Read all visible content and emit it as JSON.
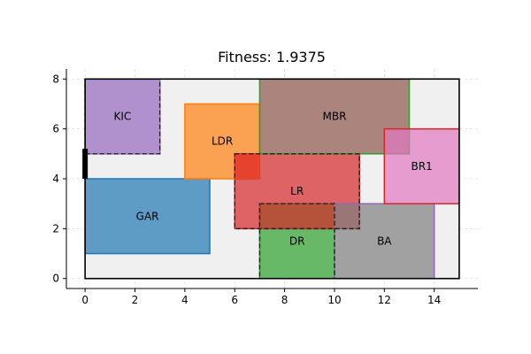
{
  "chart_data": {
    "type": "floorplan",
    "title": "Fitness: 1.9375",
    "xlim": [
      -0.75,
      15.75
    ],
    "ylim": [
      -0.4,
      8.4
    ],
    "xticks": [
      0,
      2,
      4,
      6,
      8,
      10,
      12,
      14
    ],
    "yticks": [
      0,
      2,
      4,
      6,
      8
    ],
    "grid": true,
    "boundary": {
      "x0": 0,
      "y0": 0,
      "x1": 15,
      "y1": 8
    },
    "entrance": {
      "x": 0,
      "y0": 4.0,
      "y1": 5.2
    },
    "rooms": [
      {
        "name": "KIC",
        "x0": 0,
        "y0": 5,
        "x1": 3,
        "y1": 8,
        "fill": "#9467bd",
        "edge": "#9467bd",
        "dashed": false
      },
      {
        "name": "GAR",
        "x0": 0,
        "y0": 1,
        "x1": 5,
        "y1": 4,
        "fill": "#1f77b4",
        "edge": "#1f77b4",
        "dashed": false
      },
      {
        "name": "LDR",
        "x0": 4,
        "y0": 4,
        "x1": 7,
        "y1": 7,
        "fill": "#ff7f0e",
        "edge": "#ff7f0e",
        "dashed": false
      },
      {
        "name": "DR",
        "x0": 7,
        "y0": 0,
        "x1": 10,
        "y1": 3,
        "fill": "#2ca02c",
        "edge": "#2ca02c",
        "dashed": false
      },
      {
        "name": "LR",
        "x0": 6,
        "y0": 2,
        "x1": 11,
        "y1": 5,
        "fill": "#d62728",
        "edge": "#d62728",
        "dashed": false
      },
      {
        "name": "BA",
        "x0": 10,
        "y0": 0,
        "x1": 14,
        "y1": 3,
        "fill": "#7f7f7f",
        "edge": "#9467bd",
        "dashed": false
      },
      {
        "name": "MBR",
        "x0": 7,
        "y0": 5,
        "x1": 13,
        "y1": 8,
        "fill": "#8c564b",
        "edge": "#2ca02c",
        "dashed": false
      },
      {
        "name": "BR1",
        "x0": 12,
        "y0": 3,
        "x1": 15,
        "y1": 6,
        "fill": "#e377c2",
        "edge": "#d62728",
        "dashed": false
      }
    ],
    "dashed_outlines": [
      {
        "x0": 0,
        "y0": 5,
        "x1": 3,
        "y1": 8
      },
      {
        "x0": 6,
        "y0": 2,
        "x1": 11,
        "y1": 5
      },
      {
        "x0": 7,
        "y0": 0,
        "x1": 10,
        "y1": 3
      }
    ],
    "highlight": {
      "x0": 6,
      "y0": 4,
      "x1": 7,
      "y1": 5,
      "fill": "#e8412c"
    }
  }
}
